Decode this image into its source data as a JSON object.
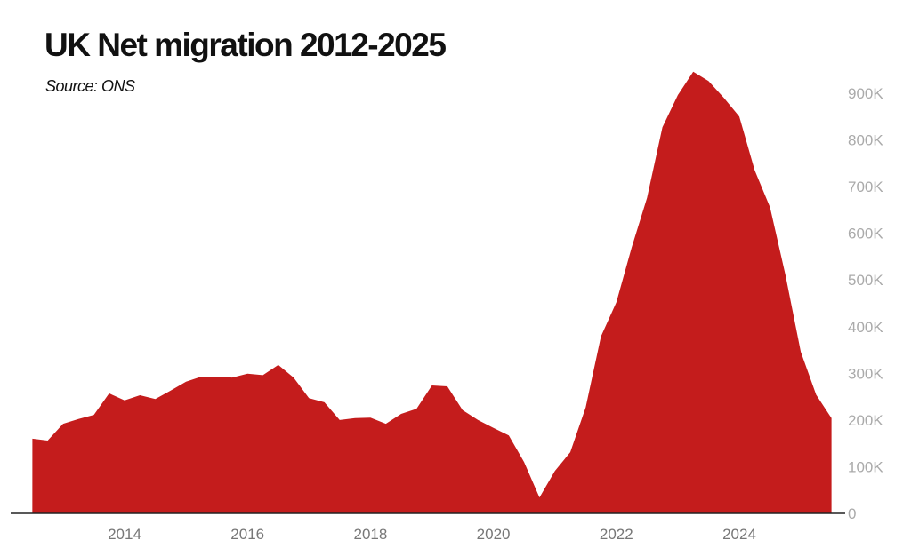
{
  "chart_data": {
    "type": "area",
    "title": "UK Net migration 2012-2025",
    "subtitle": "Source: ONS",
    "xlabel": "",
    "ylabel": "",
    "xlim": [
      2012.5,
      2025.5
    ],
    "ylim": [
      0,
      900000
    ],
    "grid": false,
    "color": "#c41c1c",
    "x_ticks": [
      2014,
      2016,
      2018,
      2020,
      2022,
      2024
    ],
    "x_tick_labels": [
      "2014",
      "2016",
      "2018",
      "2020",
      "2022",
      "2024"
    ],
    "y_ticks": [
      0,
      100000,
      200000,
      300000,
      400000,
      500000,
      600000,
      700000,
      800000,
      900000
    ],
    "y_tick_labels": [
      "0",
      "100K",
      "200K",
      "300K",
      "400K",
      "500K",
      "600K",
      "700K",
      "800K",
      "900K"
    ],
    "series": [
      {
        "name": "Net migration",
        "x_start": 2012.5,
        "x_step": 0.25,
        "values": [
          160000,
          156000,
          192000,
          202000,
          211000,
          257000,
          242000,
          253000,
          245000,
          263000,
          282000,
          293000,
          293000,
          291000,
          299000,
          296000,
          318000,
          291000,
          247000,
          238000,
          200000,
          204000,
          205000,
          192000,
          213000,
          224000,
          274000,
          272000,
          221000,
          200000,
          183000,
          167000,
          110000,
          34000,
          91000,
          131000,
          227000,
          379000,
          452000,
          570000,
          676000,
          827000,
          896000,
          946000,
          926000,
          890000,
          850000,
          735000,
          656000,
          511000,
          346000,
          254000,
          204000
        ]
      }
    ]
  }
}
